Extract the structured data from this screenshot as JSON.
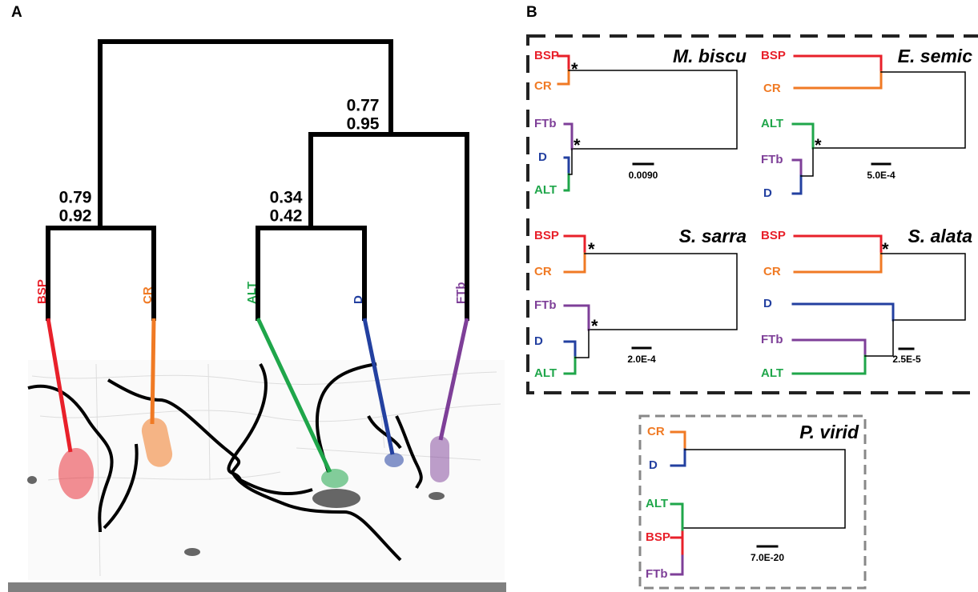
{
  "panel_a": {
    "label": "A",
    "support": [
      {
        "top": 0.79,
        "bottom": 0.92
      },
      {
        "top": 0.34,
        "bottom": 0.42
      },
      {
        "top": 0.77,
        "bottom": 0.95
      }
    ],
    "tips": [
      "BSP",
      "CR",
      "ALT",
      "D",
      "FTb"
    ]
  },
  "panel_b": {
    "label": "B",
    "trees": [
      {
        "species": "M. biscu",
        "tips": [
          "BSP",
          "CR",
          "FTb",
          "D",
          "ALT"
        ],
        "scale": "0.0090",
        "marks": [
          "*",
          "*"
        ]
      },
      {
        "species": "E. semic",
        "tips": [
          "BSP",
          "CR",
          "ALT",
          "FTb",
          "D"
        ],
        "scale": "5.0E-4",
        "marks": [
          "*"
        ]
      },
      {
        "species": "S. sarra",
        "tips": [
          "BSP",
          "CR",
          "FTb",
          "D",
          "ALT"
        ],
        "scale": "2.0E-4",
        "marks": [
          "*",
          "*"
        ]
      },
      {
        "species": "S. alata",
        "tips": [
          "BSP",
          "CR",
          "D",
          "FTb",
          "ALT"
        ],
        "scale": "2.5E-5",
        "marks": [
          "*"
        ]
      },
      {
        "species": "P. virid",
        "tips": [
          "CR",
          "D",
          "ALT",
          "BSP",
          "FTb"
        ],
        "scale": "7.0E-20",
        "marks": []
      }
    ]
  }
}
